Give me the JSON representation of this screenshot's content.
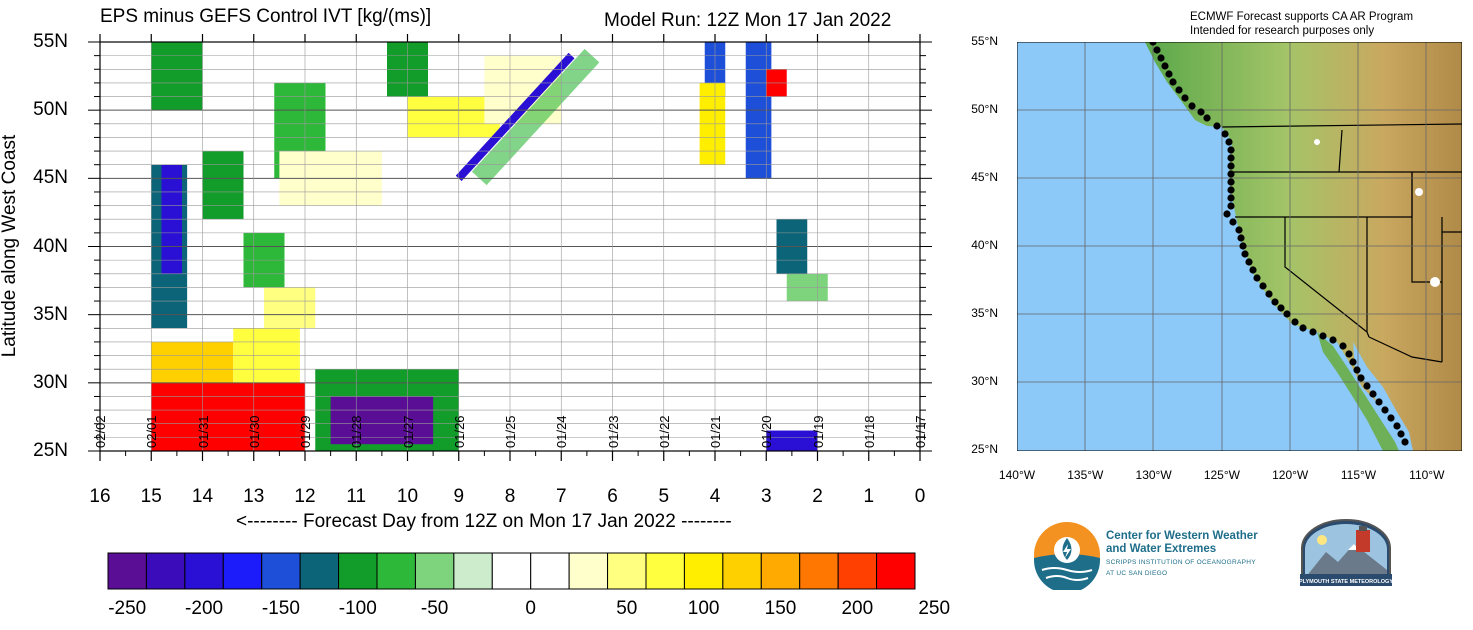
{
  "chart_data": [
    {
      "type": "heatmap",
      "title": "EPS minus GEFS Control IVT [kg/(ms)]",
      "subtitle": "Model Run: 12Z Mon 17 Jan 2022",
      "xlabel": "<-------- Forecast Day from 12Z on Mon 17 Jan 2022 --------",
      "ylabel": "Latitude along West Coast",
      "x_ticks": [
        "16",
        "15",
        "14",
        "13",
        "12",
        "11",
        "10",
        "9",
        "8",
        "7",
        "6",
        "5",
        "4",
        "3",
        "2",
        "1",
        "0"
      ],
      "y_ticks": [
        "55N",
        "50N",
        "45N",
        "40N",
        "35N",
        "30N",
        "25N"
      ],
      "xlim": [
        16,
        0
      ],
      "ylim": [
        25,
        55
      ],
      "date_labels": [
        {
          "day": 16,
          "label": "02/02"
        },
        {
          "day": 15,
          "label": "02/01"
        },
        {
          "day": 14,
          "label": "01/31"
        },
        {
          "day": 13,
          "label": "01/30"
        },
        {
          "day": 12,
          "label": "01/29"
        },
        {
          "day": 11,
          "label": "01/28"
        },
        {
          "day": 10,
          "label": "01/27"
        },
        {
          "day": 9,
          "label": "01/26"
        },
        {
          "day": 8,
          "label": "01/25"
        },
        {
          "day": 7,
          "label": "01/24"
        },
        {
          "day": 6,
          "label": "01/23"
        },
        {
          "day": 5,
          "label": "01/22"
        },
        {
          "day": 4,
          "label": "01/21"
        },
        {
          "day": 3,
          "label": "01/20"
        },
        {
          "day": 2,
          "label": "01/19"
        },
        {
          "day": 1,
          "label": "01/18"
        },
        {
          "day": 0,
          "label": "01/17"
        }
      ],
      "regions": [
        {
          "day": [
            15.0,
            12.0
          ],
          "lat": [
            25,
            30
          ],
          "value": 250
        },
        {
          "day": [
            14.6,
            12.4
          ],
          "lat": [
            26,
            29
          ],
          "value": 250
        },
        {
          "day": [
            15.0,
            13.4
          ],
          "lat": [
            30,
            33
          ],
          "value": 150
        },
        {
          "day": [
            13.4,
            12.1
          ],
          "lat": [
            30,
            34
          ],
          "value": 100
        },
        {
          "day": [
            12.8,
            11.8
          ],
          "lat": [
            34,
            37
          ],
          "value": 75
        },
        {
          "day": [
            11.8,
            9.0
          ],
          "lat": [
            25,
            31
          ],
          "value": -100
        },
        {
          "day": [
            11.5,
            9.5
          ],
          "lat": [
            25.5,
            29
          ],
          "value": -250
        },
        {
          "day": [
            15.0,
            14.3
          ],
          "lat": [
            34,
            46
          ],
          "value": -125
        },
        {
          "day": [
            14.8,
            14.4
          ],
          "lat": [
            38,
            46
          ],
          "value": -200
        },
        {
          "day": [
            15.0,
            14.0
          ],
          "lat": [
            50,
            55
          ],
          "value": -100
        },
        {
          "day": [
            14.0,
            13.2
          ],
          "lat": [
            42,
            47
          ],
          "value": -100
        },
        {
          "day": [
            13.2,
            12.4
          ],
          "lat": [
            37,
            41
          ],
          "value": -75
        },
        {
          "day": [
            12.6,
            11.6
          ],
          "lat": [
            45,
            52
          ],
          "value": -75
        },
        {
          "day": [
            10.4,
            9.6
          ],
          "lat": [
            51,
            55
          ],
          "value": -100
        },
        {
          "day": [
            3.4,
            2.9
          ],
          "lat": [
            45,
            55
          ],
          "value": -150
        },
        {
          "day": [
            4.2,
            3.8
          ],
          "lat": [
            51,
            55
          ],
          "value": -150
        },
        {
          "day": [
            2.8,
            2.2
          ],
          "lat": [
            38,
            42
          ],
          "value": -125
        },
        {
          "day": [
            2.6,
            1.8
          ],
          "lat": [
            36,
            38
          ],
          "value": -60
        },
        {
          "day": [
            3.0,
            2.0
          ],
          "lat": [
            25,
            26.5
          ],
          "value": -200
        },
        {
          "day": [
            3.0,
            2.6
          ],
          "lat": [
            51,
            53
          ],
          "value": 250
        },
        {
          "day": [
            4.3,
            3.8
          ],
          "lat": [
            46,
            52
          ],
          "value": 120
        },
        {
          "day": [
            12.5,
            10.5
          ],
          "lat": [
            43,
            47
          ],
          "value": 60
        },
        {
          "day": [
            10.0,
            8.2
          ],
          "lat": [
            48,
            51
          ],
          "value": 100
        },
        {
          "day": [
            8.5,
            7.0
          ],
          "lat": [
            49,
            54
          ],
          "value": 60
        }
      ],
      "bands": [
        {
          "from": [
            9,
            45
          ],
          "to": [
            6.8,
            54
          ],
          "value": -200
        },
        {
          "from": [
            8.6,
            45
          ],
          "to": [
            6.4,
            54
          ],
          "value": -75
        }
      ]
    },
    {
      "type": "heatmap",
      "colorbar_ticks": [
        "-250",
        "-200",
        "-150",
        "-100",
        "-50",
        "0",
        "50",
        "100",
        "150",
        "200",
        "250"
      ],
      "colors": [
        "#5a0e96",
        "#3a0cba",
        "#2a10d4",
        "#1c1cfa",
        "#1d4fd8",
        "#0b6478",
        "#129c2a",
        "#2eb83a",
        "#7ed47c",
        "#cceccc",
        "#ffffff",
        "#ffffff",
        "#ffffcc",
        "#ffff80",
        "#ffff40",
        "#ffee00",
        "#ffd000",
        "#ffaa00",
        "#ff7700",
        "#ff4000",
        "#ff0000"
      ]
    }
  ],
  "map": {
    "title_line1": "ECMWF Forecast supports CA AR Program",
    "title_line2": "Intended for research purposes only",
    "lat_labels": [
      "55°N",
      "50°N",
      "45°N",
      "40°N",
      "35°N",
      "30°N",
      "25°N"
    ],
    "lon_labels": [
      "140°W",
      "135°W",
      "130°W",
      "125°W",
      "120°W",
      "115°W",
      "110°W"
    ]
  },
  "logos": {
    "cw3e_line1": "Center for Western Weather",
    "cw3e_line2": "and Water Extremes",
    "cw3e_line3": "SCRIPPS INSTITUTION OF OCEANOGRAPHY",
    "cw3e_line4": "AT UC SAN DIEGO",
    "plymouth_text": "PLYMOUTH STATE METEOROLOGY"
  },
  "colors": {
    "ocean": "#8cc8f8",
    "land_low": "#5aa84a",
    "land_high": "#c9a860",
    "cw3e_orange": "#f39221",
    "cw3e_blue": "#1e6e8a"
  }
}
